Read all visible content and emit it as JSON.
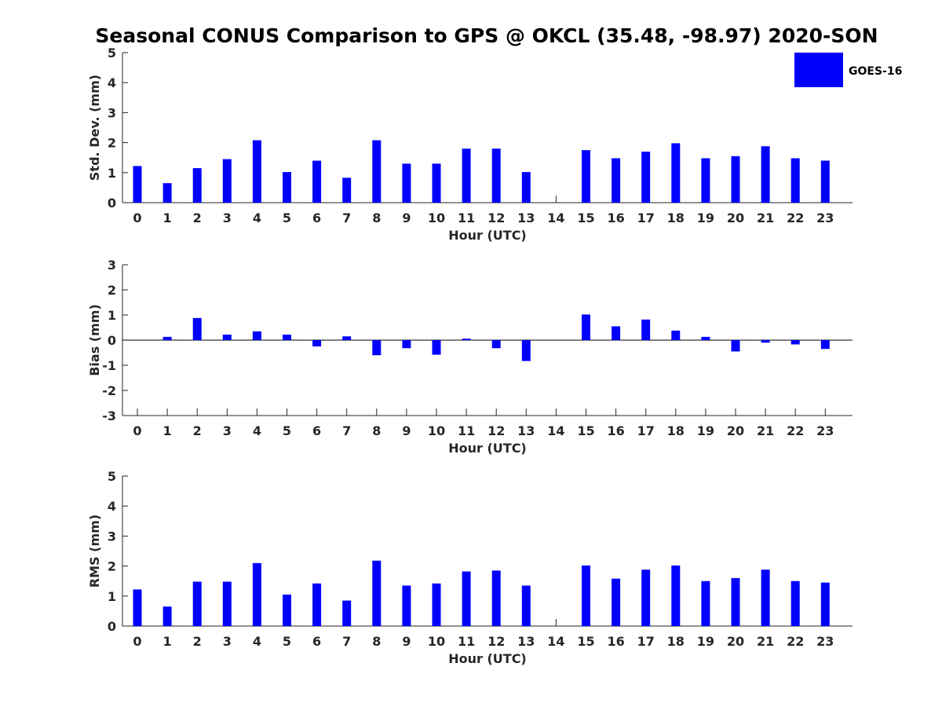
{
  "title": "Seasonal CONUS Comparison to GPS @ OKCL (35.48, -98.97) 2020-SON",
  "legend": {
    "label": "GOES-16",
    "color": "#0000ff"
  },
  "chart_data": [
    {
      "type": "bar",
      "xlabel": "Hour (UTC)",
      "ylabel": "Std. Dev. (mm)",
      "ylim": [
        0,
        5
      ],
      "yticks": [
        0,
        1,
        2,
        3,
        4,
        5
      ],
      "categories": [
        "0",
        "1",
        "2",
        "3",
        "4",
        "5",
        "6",
        "7",
        "8",
        "9",
        "10",
        "11",
        "12",
        "13",
        "14",
        "15",
        "16",
        "17",
        "18",
        "19",
        "20",
        "21",
        "22",
        "23"
      ],
      "series": [
        {
          "name": "GOES-16",
          "values": [
            1.22,
            0.65,
            1.15,
            1.45,
            2.08,
            1.02,
            1.4,
            0.83,
            2.08,
            1.3,
            1.3,
            1.8,
            1.8,
            1.02,
            0,
            1.75,
            1.48,
            1.7,
            1.98,
            1.48,
            1.55,
            1.88,
            1.48,
            1.4
          ]
        }
      ]
    },
    {
      "type": "bar",
      "xlabel": "Hour (UTC)",
      "ylabel": "Bias (mm)",
      "ylim": [
        -3,
        3
      ],
      "yticks": [
        -3,
        -2,
        -1,
        0,
        1,
        2,
        3
      ],
      "categories": [
        "0",
        "1",
        "2",
        "3",
        "4",
        "5",
        "6",
        "7",
        "8",
        "9",
        "10",
        "11",
        "12",
        "13",
        "14",
        "15",
        "16",
        "17",
        "18",
        "19",
        "20",
        "21",
        "22",
        "23"
      ],
      "series": [
        {
          "name": "GOES-16",
          "values": [
            0,
            0.13,
            0.88,
            0.22,
            0.35,
            0.22,
            -0.25,
            0.15,
            -0.6,
            -0.32,
            -0.58,
            0.06,
            -0.32,
            -0.83,
            0,
            1.02,
            0.55,
            0.82,
            0.38,
            0.13,
            -0.45,
            -0.1,
            -0.17,
            -0.35
          ]
        }
      ]
    },
    {
      "type": "bar",
      "xlabel": "Hour (UTC)",
      "ylabel": "RMS (mm)",
      "ylim": [
        0,
        5
      ],
      "yticks": [
        0,
        1,
        2,
        3,
        4,
        5
      ],
      "categories": [
        "0",
        "1",
        "2",
        "3",
        "4",
        "5",
        "6",
        "7",
        "8",
        "9",
        "10",
        "11",
        "12",
        "13",
        "14",
        "15",
        "16",
        "17",
        "18",
        "19",
        "20",
        "21",
        "22",
        "23"
      ],
      "series": [
        {
          "name": "GOES-16",
          "values": [
            1.22,
            0.65,
            1.48,
            1.48,
            2.1,
            1.05,
            1.42,
            0.85,
            2.18,
            1.35,
            1.42,
            1.82,
            1.85,
            1.35,
            0,
            2.02,
            1.58,
            1.88,
            2.02,
            1.5,
            1.6,
            1.88,
            1.5,
            1.45
          ]
        }
      ]
    }
  ]
}
